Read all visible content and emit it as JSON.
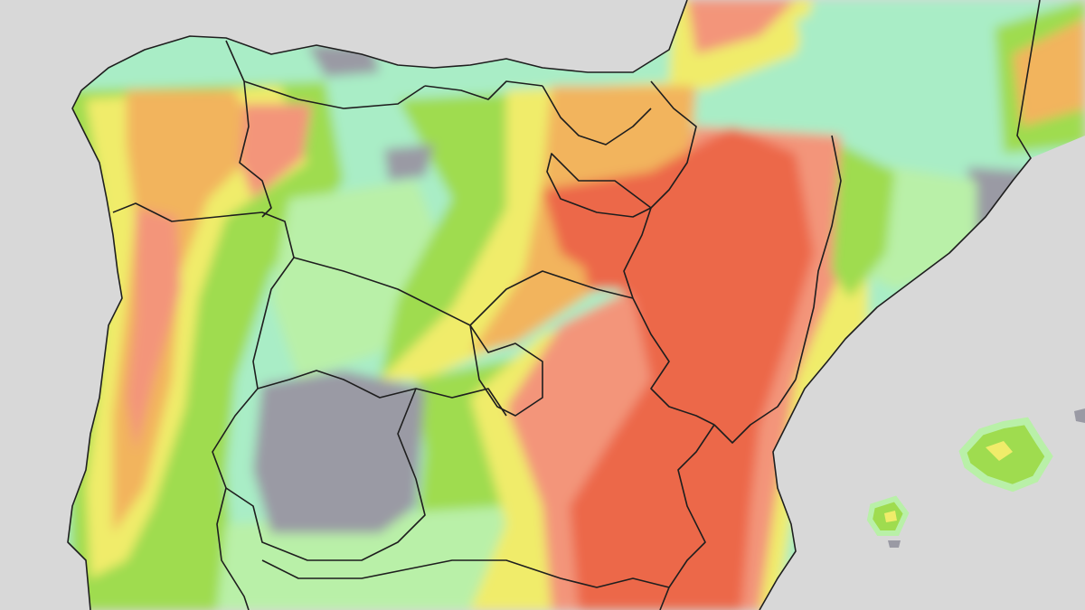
{
  "map": {
    "colors": {
      "sea": "#d8d8d8",
      "dry": "#9a9aa4",
      "mint": "#a9edc6",
      "pale_green": "#b9f0a8",
      "lime": "#9fdc4f",
      "yellow": "#f0ec6a",
      "orange": "#f2b45d",
      "salmon": "#f3957a",
      "red": "#ec6749",
      "border": "#1e1e1e"
    },
    "regions": [
      "portugal",
      "galicia",
      "asturias",
      "cantabria",
      "basque-country",
      "navarra",
      "la-rioja",
      "castilla-y-leon",
      "aragon",
      "catalonia",
      "madrid",
      "castilla-la-mancha",
      "valencia",
      "extremadura",
      "andalusia",
      "balearic-islands",
      "france"
    ]
  }
}
